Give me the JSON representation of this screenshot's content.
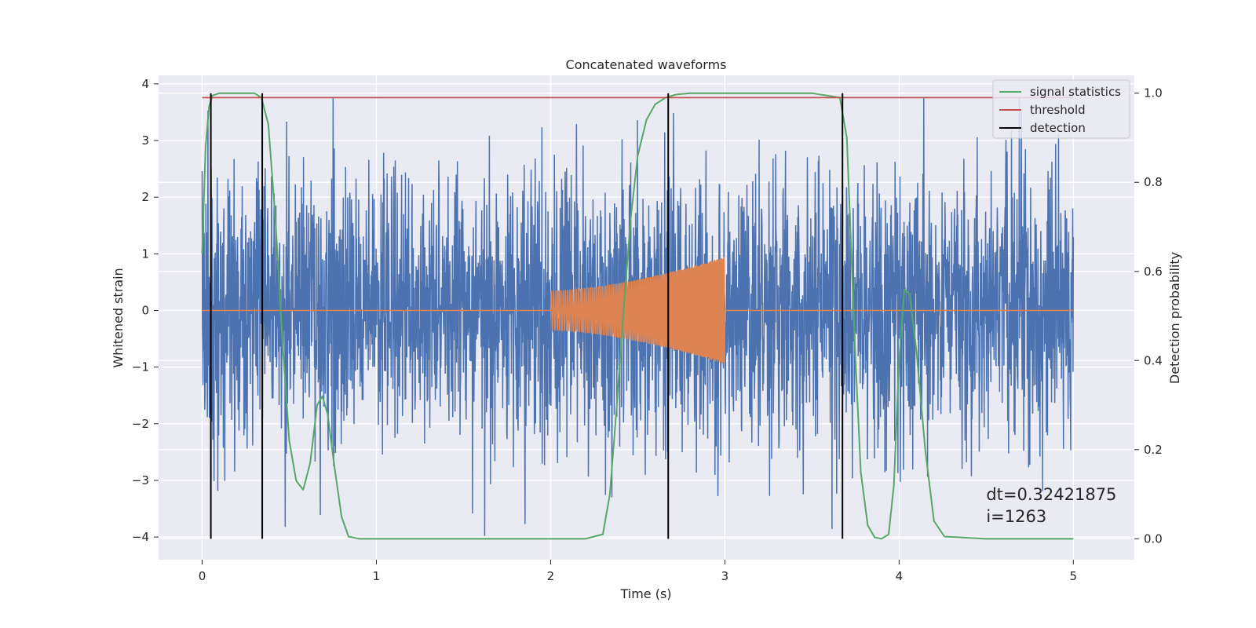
{
  "chart_data": {
    "type": "line",
    "title": "Concatenated waveforms",
    "xlabel": "Time (s)",
    "ylabel_left": "Whitened strain",
    "ylabel_right": "Detection probability",
    "xlim": [
      -0.25,
      5.35
    ],
    "ylim_left": [
      -4.4,
      4.15
    ],
    "ylim_right": [
      -0.047,
      1.04
    ],
    "x_ticks": [
      "0",
      "1",
      "2",
      "3",
      "4",
      "5"
    ],
    "y_left_ticks": [
      "−4",
      "−3",
      "−2",
      "−1",
      "0",
      "1",
      "2",
      "3",
      "4"
    ],
    "y_right_ticks": [
      "0.0",
      "0.2",
      "0.4",
      "0.6",
      "0.8",
      "1.0"
    ],
    "grid": true,
    "legend_position": "top-right",
    "legend": [
      "signal statistics",
      "threshold",
      "detection"
    ],
    "colors": {
      "noise": "#4c72b0",
      "signal_waveform": "#dd8452",
      "signal_statistics": "#55a868",
      "threshold": "#c44e52",
      "detection": "#000000",
      "background": "#eaeaf2"
    },
    "series": [
      {
        "name": "noisy strain",
        "axis": "left",
        "description_range": {
          "x_start": 0.0,
          "x_end": 5.0,
          "typical_amplitude": 1.2,
          "peak_max": 3.75,
          "peak_min": -3.98
        }
      },
      {
        "name": "injected waveform",
        "axis": "left",
        "chirp": {
          "x_start": 2.0,
          "x_end": 3.0,
          "amp_start": 0.35,
          "amp_end": 0.95
        }
      },
      {
        "name": "signal statistics",
        "axis": "right",
        "x": [
          0.0,
          0.02,
          0.04,
          0.06,
          0.1,
          0.2,
          0.3,
          0.34,
          0.38,
          0.42,
          0.46,
          0.5,
          0.54,
          0.58,
          0.62,
          0.66,
          0.69,
          0.72,
          0.76,
          0.8,
          0.84,
          0.9,
          1.5,
          2.2,
          2.3,
          2.34,
          2.38,
          2.42,
          2.46,
          2.5,
          2.55,
          2.6,
          2.66,
          2.72,
          2.8,
          3.0,
          3.5,
          3.66,
          3.7,
          3.72,
          3.75,
          3.78,
          3.82,
          3.86,
          3.9,
          3.94,
          3.97,
          4.0,
          4.03,
          4.06,
          4.1,
          4.15,
          4.2,
          4.26,
          4.5,
          5.0
        ],
        "y": [
          0.64,
          0.88,
          0.97,
          0.995,
          1.0,
          1.0,
          1.0,
          0.99,
          0.93,
          0.72,
          0.45,
          0.22,
          0.13,
          0.11,
          0.17,
          0.3,
          0.32,
          0.28,
          0.16,
          0.05,
          0.005,
          0.0,
          0.0,
          0.0,
          0.01,
          0.1,
          0.3,
          0.52,
          0.72,
          0.86,
          0.94,
          0.975,
          0.99,
          0.997,
          1.0,
          1.0,
          1.0,
          0.99,
          0.9,
          0.7,
          0.4,
          0.15,
          0.03,
          0.003,
          0.0,
          0.01,
          0.12,
          0.4,
          0.56,
          0.55,
          0.42,
          0.2,
          0.04,
          0.005,
          0.0,
          0.0
        ]
      },
      {
        "name": "threshold",
        "axis": "right",
        "x": [
          0.0,
          5.0
        ],
        "y": [
          0.99,
          0.99
        ]
      },
      {
        "name": "detection",
        "axis": "right",
        "type": "vlines",
        "x": [
          0.05,
          0.345,
          2.675,
          3.675
        ],
        "y_range": [
          0.0,
          1.0
        ]
      }
    ],
    "annotation": {
      "lines": [
        "dt=0.32421875",
        " i=1263"
      ],
      "x": 4.5,
      "y_left": -3.35
    }
  }
}
